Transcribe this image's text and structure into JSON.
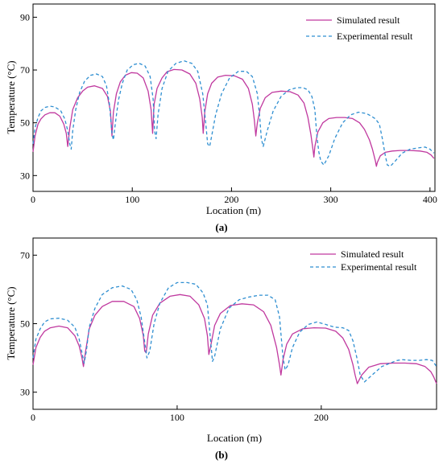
{
  "colors": {
    "simulated": "#c0399f",
    "experimental": "#2f8fd1"
  },
  "chart_data": [
    {
      "type": "line",
      "panel_label": "(a)",
      "xlabel": "Location (m)",
      "ylabel": "Temperature (°C)",
      "xlim": [
        0,
        405
      ],
      "ylim": [
        24,
        95
      ],
      "xticks": [
        0,
        100,
        200,
        300,
        400
      ],
      "yticks": [
        30,
        50,
        70,
        90
      ],
      "legend_position": "top-right",
      "grid": false,
      "series": [
        {
          "name": "Simulated result",
          "style": "solid",
          "x": [
            0,
            2,
            5,
            8,
            12,
            17,
            22,
            27,
            31,
            33.5,
            35,
            37,
            40,
            45,
            50,
            55,
            62,
            70,
            75,
            78,
            79.5,
            81,
            84,
            88,
            93,
            99,
            105,
            111,
            116,
            119,
            120.5,
            122,
            125,
            130,
            135,
            142,
            150,
            158,
            164,
            168,
            170.5,
            171.5,
            173,
            176,
            180,
            186,
            194,
            203,
            211,
            217,
            221,
            223,
            224.5,
            226,
            229,
            234,
            241,
            250,
            259,
            267,
            273,
            277,
            280,
            282,
            283,
            284,
            287,
            292,
            298,
            306,
            314,
            322,
            329,
            334,
            339,
            342,
            345,
            346,
            347,
            350,
            355,
            362,
            370,
            380,
            390,
            397,
            401,
            404
          ],
          "y": [
            39,
            45,
            49.5,
            51.5,
            53,
            53.8,
            53.8,
            52.5,
            49.5,
            46,
            41,
            48,
            55,
            59.5,
            62,
            63.5,
            64,
            63,
            60,
            54.5,
            45,
            54,
            61,
            65.5,
            68,
            69,
            68.8,
            67,
            62,
            55,
            46,
            57,
            63,
            67,
            69.3,
            70.2,
            70,
            68.5,
            65,
            59,
            52,
            46,
            54,
            61,
            65,
            67.3,
            68,
            67.8,
            66.5,
            63,
            57,
            51,
            45,
            50,
            55.5,
            59.5,
            61.5,
            62,
            61.8,
            60.5,
            57.5,
            52,
            45.5,
            40,
            37,
            41,
            46.5,
            50,
            51.6,
            52,
            52,
            51.6,
            50,
            47.5,
            43.5,
            40,
            35.5,
            33.5,
            35,
            37.5,
            38.8,
            39.3,
            39.5,
            39.5,
            39.3,
            38.8,
            37.8,
            36.5
          ]
        },
        {
          "name": "Experimental result",
          "style": "dashed",
          "x": [
            0,
            2,
            5,
            8,
            12,
            17,
            22,
            28,
            32,
            35,
            37,
            38.5,
            40,
            43,
            47,
            52,
            58,
            64,
            70,
            74,
            77,
            79.5,
            81,
            83,
            86,
            90,
            95,
            101,
            107,
            113,
            118,
            121,
            122.5,
            124,
            126,
            130,
            136,
            144,
            152,
            160,
            166,
            171,
            174,
            176,
            178,
            180,
            184,
            190,
            198,
            207,
            215,
            221,
            226,
            228.5,
            230,
            232,
            236,
            242,
            250,
            258,
            266,
            272,
            277,
            281,
            284,
            286,
            288,
            290,
            293,
            298,
            304,
            312,
            320,
            328,
            336,
            341,
            345,
            349,
            352,
            355,
            357,
            360,
            365,
            372,
            380,
            388,
            395,
            400,
            404
          ],
          "y": [
            42,
            48,
            52,
            54.5,
            55.8,
            56.3,
            56,
            54.5,
            51.5,
            47,
            42,
            40,
            47,
            55,
            61.5,
            65.8,
            68,
            68.5,
            67.5,
            64,
            57,
            46,
            43.5,
            50,
            58.5,
            65,
            70,
            72,
            72.5,
            71.5,
            67.5,
            59,
            47,
            44,
            53,
            63,
            69.5,
            72.5,
            73.5,
            72.5,
            69.5,
            61,
            50,
            42,
            41,
            45,
            53,
            61,
            67,
            69.5,
            69.5,
            67.5,
            61,
            52,
            44,
            41,
            47,
            54.5,
            60,
            62.5,
            63.3,
            63.3,
            62.5,
            60,
            55,
            45,
            39,
            35.5,
            34,
            37.5,
            44,
            50,
            53,
            54,
            53.5,
            52.5,
            51.5,
            49.5,
            44,
            37.5,
            34,
            33.5,
            35.5,
            38.5,
            40,
            40.5,
            40.8,
            40,
            38.5
          ]
        }
      ]
    },
    {
      "type": "line",
      "panel_label": "(b)",
      "xlabel": "Location (m)",
      "ylabel": "Temperature (°C)",
      "xlim": [
        0,
        280
      ],
      "ylim": [
        25,
        75
      ],
      "xticks": [
        0,
        100,
        200
      ],
      "yticks": [
        30,
        50,
        70
      ],
      "legend_position": "top-right",
      "grid": false,
      "series": [
        {
          "name": "Simulated result",
          "style": "solid",
          "x": [
            0,
            2,
            5,
            8,
            12,
            18,
            24,
            29,
            32,
            34,
            35,
            36.5,
            39,
            43,
            48,
            55,
            63,
            70,
            74,
            76.5,
            77.5,
            78.5,
            80,
            83,
            88,
            95,
            102,
            109,
            115,
            119,
            121,
            122,
            123.5,
            126,
            130,
            137,
            145,
            153,
            160,
            165,
            169,
            171,
            172,
            173.5,
            176,
            180,
            187,
            195,
            203,
            210,
            215,
            219,
            222,
            223.5,
            225,
            228,
            233,
            241,
            250,
            258,
            266,
            272,
            276,
            278,
            280
          ],
          "y": [
            38,
            43,
            46,
            47.8,
            48.8,
            49.3,
            48.8,
            46.5,
            43.5,
            40,
            37.5,
            42,
            48.5,
            52.5,
            55,
            56.5,
            56.5,
            55,
            51.5,
            46.5,
            42,
            41.5,
            47,
            52.5,
            56,
            58,
            58.5,
            58,
            55.5,
            51.5,
            46.5,
            41,
            44,
            49.5,
            53,
            55.3,
            55.8,
            55.5,
            53.5,
            49.5,
            43,
            38,
            35,
            39.5,
            44,
            47,
            48.5,
            48.8,
            48.7,
            47.8,
            45.8,
            42.5,
            38,
            35,
            32.5,
            35,
            37.3,
            38.3,
            38.5,
            38.5,
            38.3,
            37.5,
            36,
            34.5,
            32.5
          ]
        },
        {
          "name": "Experimental result",
          "style": "dashed",
          "x": [
            0,
            2,
            5,
            8,
            12,
            18,
            24,
            29,
            32,
            34,
            35.5,
            37,
            39,
            43,
            48,
            55,
            62,
            68,
            72,
            75,
            77,
            79,
            81,
            84,
            88,
            94,
            100,
            107,
            113,
            118,
            121,
            123,
            124.5,
            126,
            130,
            136,
            143,
            150,
            157,
            163,
            168,
            171,
            173.5,
            175,
            177,
            180,
            185,
            191,
            197,
            203,
            209,
            215,
            219,
            222,
            225,
            227,
            230,
            236,
            242,
            248,
            252,
            256,
            262,
            268,
            273,
            277,
            280
          ],
          "y": [
            40,
            45.5,
            48.5,
            50.5,
            51.4,
            51.6,
            51,
            49,
            45.5,
            41.5,
            38.5,
            42,
            49,
            54.5,
            58.5,
            60.5,
            61,
            60,
            57,
            52,
            46,
            40,
            42,
            50,
            56,
            60.5,
            62,
            62,
            61.5,
            59,
            55.5,
            46,
            39,
            40.5,
            48.5,
            54.5,
            57,
            57.8,
            58.3,
            58.3,
            57,
            52,
            40,
            36.5,
            38,
            43,
            47.5,
            49.8,
            50.5,
            49.8,
            49,
            48.8,
            48,
            45,
            39.5,
            35,
            33,
            35.3,
            37.5,
            38.5,
            39.2,
            39.5,
            39.3,
            39.3,
            39.5,
            39.3,
            37.5
          ]
        }
      ]
    }
  ]
}
